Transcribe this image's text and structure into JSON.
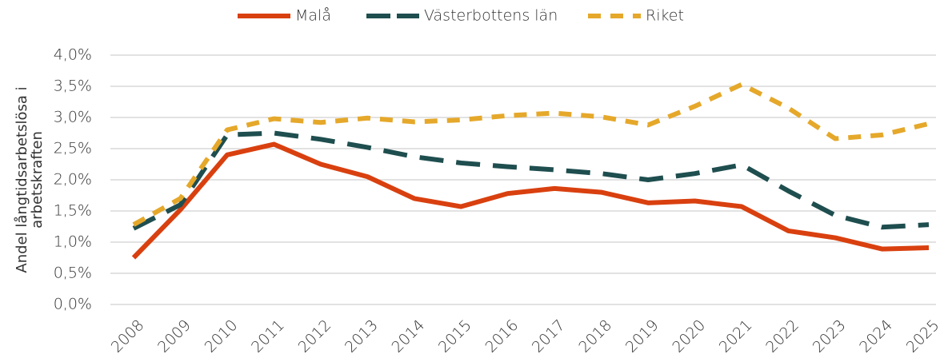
{
  "chart_data": {
    "type": "line",
    "y_label": "Andel långtidsarbetslösa i arbetskraften",
    "categories": [
      "2008",
      "2009",
      "2010",
      "2011",
      "2012",
      "2013",
      "2014",
      "2015",
      "2016",
      "2017",
      "2018",
      "2019",
      "2020",
      "2021",
      "2022",
      "2023",
      "2024",
      "2025"
    ],
    "series": [
      {
        "name": "Malå",
        "color": "#d9400f",
        "line_style": "solid",
        "values": [
          0.75,
          1.52,
          2.4,
          2.57,
          2.25,
          2.05,
          1.7,
          1.57,
          1.78,
          1.86,
          1.8,
          1.63,
          1.66,
          1.57,
          1.18,
          1.07,
          0.89,
          0.91
        ]
      },
      {
        "name": "Västerbottens län",
        "color": "#1f4e4f",
        "line_style": "long-dash",
        "values": [
          1.22,
          1.6,
          2.72,
          2.75,
          2.65,
          2.52,
          2.37,
          2.27,
          2.21,
          2.16,
          2.1,
          2.0,
          2.1,
          2.24,
          1.82,
          1.43,
          1.24,
          1.28
        ]
      },
      {
        "name": "Riket",
        "color": "#e5a82a",
        "line_style": "dash",
        "values": [
          1.28,
          1.7,
          2.8,
          2.98,
          2.92,
          2.99,
          2.93,
          2.96,
          3.03,
          3.07,
          3.01,
          2.88,
          3.18,
          3.53,
          3.15,
          2.66,
          2.72,
          2.9
        ]
      }
    ],
    "ylim": [
      0,
      4
    ],
    "yticks": [
      {
        "value": 0,
        "label": "0,0%"
      },
      {
        "value": 0.5,
        "label": "0,5%"
      },
      {
        "value": 1,
        "label": "1,0%"
      },
      {
        "value": 1.5,
        "label": "1,5%"
      },
      {
        "value": 2,
        "label": "2,0%"
      },
      {
        "value": 2.5,
        "label": "2,5%"
      },
      {
        "value": 3,
        "label": "3,0%"
      },
      {
        "value": 3.5,
        "label": "3,5%"
      },
      {
        "value": 4,
        "label": "4,0%"
      }
    ],
    "grid": true,
    "legend": "top"
  }
}
